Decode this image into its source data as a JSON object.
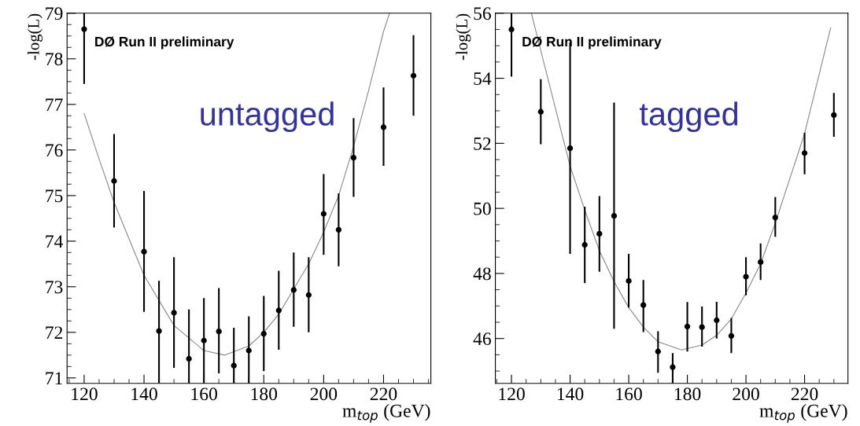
{
  "chart_data": [
    {
      "type": "scatter",
      "xlabel": "m$_{top}$ (GeV)",
      "ylabel": "-log(L)",
      "annotations": [
        "DØ Run II preliminary",
        "untagged"
      ],
      "xlim": [
        114.3,
        235.8
      ],
      "ylim": [
        70.88,
        79
      ],
      "xticks": [
        120,
        140,
        160,
        180,
        200,
        220
      ],
      "yticks": [
        71,
        72,
        73,
        74,
        75,
        76,
        77,
        78,
        79
      ],
      "grid": false,
      "legend": false,
      "x": [
        120,
        130,
        140,
        145,
        150,
        155,
        160,
        165,
        170,
        175,
        180,
        185,
        190,
        195,
        200,
        205,
        210,
        220,
        230
      ],
      "series": [
        {
          "marker": "circle",
          "color": "#000000",
          "values": [
            78.65,
            75.32,
            73.77,
            72.03,
            72.43,
            71.42,
            71.82,
            72.02,
            71.27,
            71.6,
            71.97,
            72.48,
            72.93,
            72.82,
            74.6,
            74.25,
            75.83,
            76.5,
            77.63
          ],
          "errors": [
            [
              77.45,
              79.0
            ],
            [
              74.3,
              76.35
            ],
            [
              72.45,
              75.1
            ],
            [
              70.88,
              73.13
            ],
            [
              71.22,
              73.65
            ],
            [
              70.88,
              72.5
            ],
            [
              70.88,
              72.75
            ],
            [
              71.1,
              72.97
            ],
            [
              70.88,
              72.1
            ],
            [
              70.88,
              72.35
            ],
            [
              71.15,
              72.8
            ],
            [
              71.62,
              73.35
            ],
            [
              72.12,
              73.75
            ],
            [
              72.0,
              73.65
            ],
            [
              73.7,
              75.47
            ],
            [
              73.45,
              75.05
            ],
            [
              74.97,
              76.7
            ],
            [
              75.65,
              77.37
            ],
            [
              76.75,
              78.52
            ]
          ]
        },
        {
          "type": "line",
          "color": "#888888",
          "x": [
            120,
            125,
            130,
            140,
            150,
            160,
            167,
            175,
            180,
            185,
            190,
            195,
            200,
            205,
            210,
            215,
            220,
            222
          ],
          "values": [
            76.8,
            75.8,
            74.85,
            73.25,
            72.15,
            71.6,
            71.5,
            71.7,
            72.0,
            72.4,
            72.95,
            73.5,
            74.2,
            75.0,
            76.08,
            77.3,
            78.6,
            79.0
          ]
        }
      ]
    },
    {
      "type": "scatter",
      "xlabel": "m$_{top}$ (GeV)",
      "ylabel": "-log(L)",
      "annotations": [
        "DØ Run II preliminary",
        "tagged"
      ],
      "xlim": [
        114.5,
        234.8
      ],
      "ylim": [
        44.62,
        56
      ],
      "xticks": [
        120,
        140,
        160,
        180,
        200,
        220
      ],
      "yticks": [
        46,
        48,
        50,
        52,
        54,
        56
      ],
      "grid": false,
      "legend": false,
      "x": [
        120,
        130,
        140,
        145,
        150,
        155,
        160,
        165,
        170,
        175,
        180,
        185,
        190,
        195,
        200,
        205,
        210,
        220,
        230
      ],
      "series": [
        {
          "marker": "circle",
          "color": "#000000",
          "values": [
            55.5,
            52.97,
            51.85,
            48.88,
            49.22,
            49.77,
            47.77,
            47.03,
            45.6,
            45.12,
            46.37,
            46.35,
            46.56,
            46.08,
            47.9,
            48.35,
            49.72,
            51.7,
            52.87
          ],
          "errors": [
            [
              54.05,
              56.0
            ],
            [
              51.97,
              53.97
            ],
            [
              48.6,
              55.1
            ],
            [
              47.7,
              50.05
            ],
            [
              48.05,
              50.38
            ],
            [
              46.3,
              53.25
            ],
            [
              46.95,
              48.6
            ],
            [
              46.2,
              47.8
            ],
            [
              44.95,
              46.22
            ],
            [
              44.62,
              45.55
            ],
            [
              45.6,
              47.12
            ],
            [
              45.75,
              46.98
            ],
            [
              46.0,
              47.13
            ],
            [
              45.55,
              46.63
            ],
            [
              47.33,
              48.5
            ],
            [
              47.8,
              48.92
            ],
            [
              49.13,
              50.35
            ],
            [
              51.05,
              52.33
            ],
            [
              52.2,
              53.55
            ]
          ]
        },
        {
          "type": "line",
          "color": "#888888",
          "x": [
            126.8,
            130,
            140,
            145,
            150,
            155,
            160,
            165,
            170,
            178,
            185,
            190,
            195,
            200,
            205,
            210,
            220,
            228.9
          ],
          "values": [
            56.0,
            54.85,
            51.3,
            49.95,
            48.7,
            47.75,
            46.95,
            46.35,
            45.9,
            45.65,
            45.8,
            46.1,
            46.6,
            47.4,
            48.3,
            49.55,
            52.3,
            55.55
          ]
        }
      ]
    }
  ]
}
